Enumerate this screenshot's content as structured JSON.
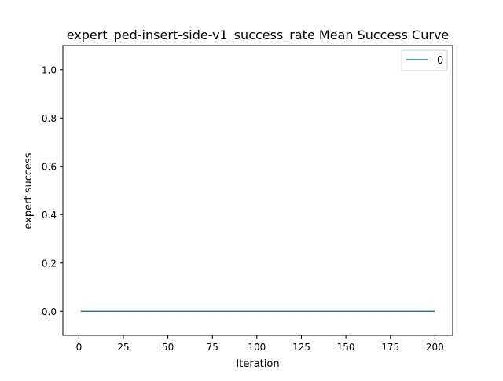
{
  "chart_data": {
    "type": "line",
    "title": "expert_ped-insert-side-v1_success_rate Mean Success Curve",
    "xlabel": "Iteration",
    "ylabel": "expert success",
    "xlim": [
      -9,
      210
    ],
    "ylim": [
      -0.1,
      1.1
    ],
    "x_ticks": [
      0,
      25,
      50,
      75,
      100,
      125,
      150,
      175,
      200
    ],
    "y_ticks": [
      0.0,
      0.2,
      0.4,
      0.6,
      0.8,
      1.0
    ],
    "y_tick_labels": [
      "0.0",
      "0.2",
      "0.4",
      "0.6",
      "0.8",
      "1.0"
    ],
    "grid": false,
    "legend_position": "top-right",
    "series": [
      {
        "name": "0",
        "color": "#1f77b4",
        "x": [
          1,
          200
        ],
        "y": [
          0.0,
          0.0
        ]
      }
    ]
  }
}
